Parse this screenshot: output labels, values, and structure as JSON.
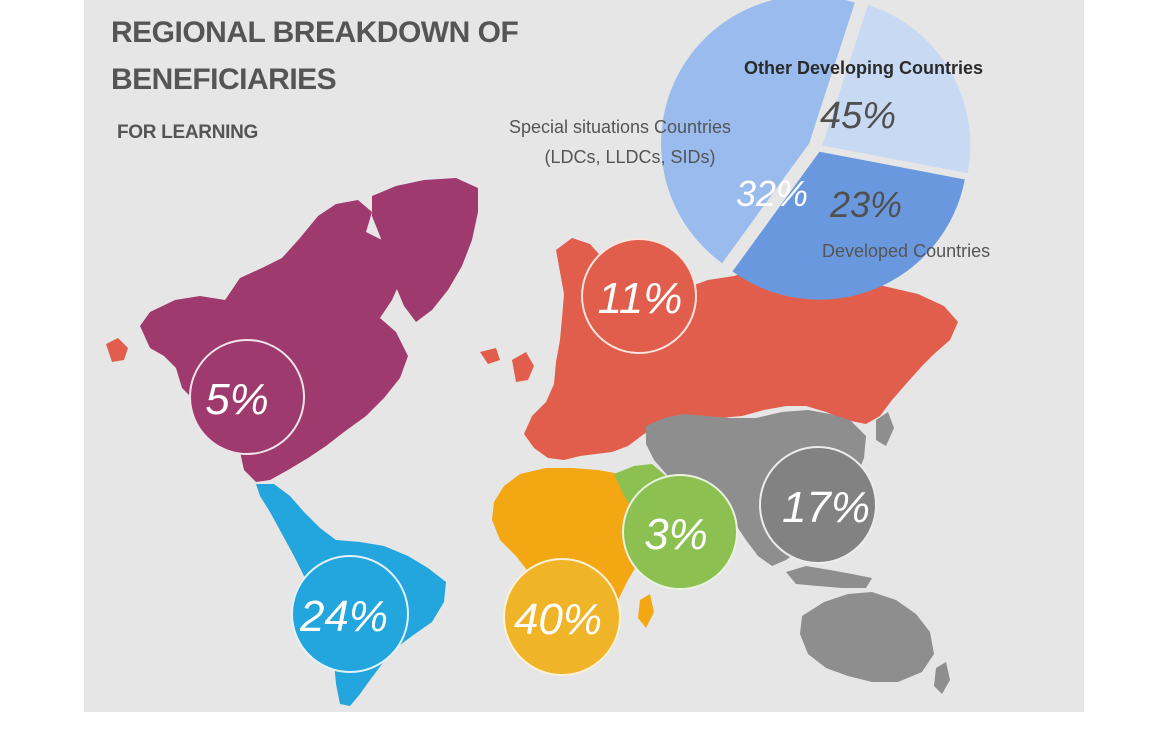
{
  "header": {
    "title_line_1": "REGIONAL BREAKDOWN OF",
    "title_line_2": "BENEFICIARIES",
    "subtitle": "FOR LEARNING"
  },
  "chart_data": [
    {
      "type": "pie",
      "title": "",
      "slices": [
        {
          "label": "Other Developing Countries",
          "value": 45,
          "display": "45%",
          "color": "#99bbee"
        },
        {
          "label": "Developed Countries",
          "value": 23,
          "display": "23%",
          "color": "#c7d9f3"
        },
        {
          "label_lines": [
            "Special situations Countries",
            "(LDCs, LLDCs, SIDs)"
          ],
          "value": 32,
          "display": "32%",
          "color": "#6a98de"
        }
      ]
    },
    {
      "type": "map-bubbles",
      "title": "",
      "regions": [
        {
          "id": "north-america",
          "value": 5,
          "display": "5%",
          "color": "#9e3a6e"
        },
        {
          "id": "latin-america",
          "value": 24,
          "display": "24%",
          "color": "#23a5dd"
        },
        {
          "id": "europe-russia",
          "value": 11,
          "display": "11%",
          "color": "#e25e4c"
        },
        {
          "id": "africa",
          "value": 40,
          "display": "40%",
          "color": "#f0b429"
        },
        {
          "id": "middle-east",
          "value": 3,
          "display": "3%",
          "color": "#8cc152"
        },
        {
          "id": "asia-oceania",
          "value": 17,
          "display": "17%",
          "color": "#828282"
        }
      ]
    }
  ]
}
